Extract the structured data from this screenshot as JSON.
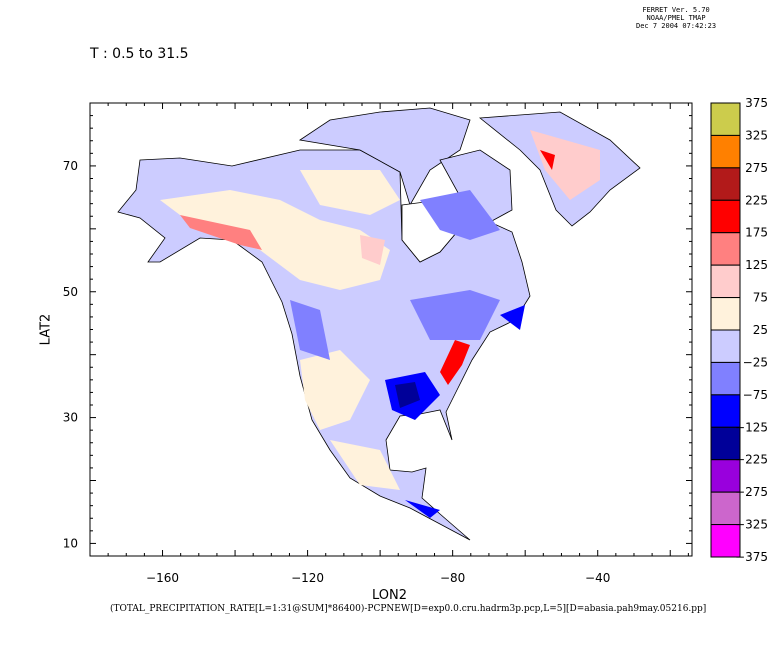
{
  "header": {
    "line1": "FERRET Ver. 5.70",
    "line2": "NOAA/PMEL TMAP",
    "line3": "Dec  7 2004 07:42:23"
  },
  "title": "T : 0.5 to 31.5",
  "footer": "(TOTAL_PRECIPITATION_RATE[L=1:31@SUM]*86400)-PCPNEW[D=exp0.0.cru.hadrm3p.pcp,L=5][D=abasia.pah9may.05216.pp]",
  "chart_data": {
    "type": "heatmap",
    "title": "T : 0.5 to 31.5",
    "xlabel": "LON2",
    "ylabel": "LAT2",
    "xlim": [
      -180,
      -14
    ],
    "ylim": [
      8,
      80
    ],
    "xticks": [
      -160,
      -120,
      -80,
      -40
    ],
    "xtick_labels": [
      "−160",
      "−120",
      "−80",
      "−40"
    ],
    "yticks": [
      70,
      50,
      30,
      10
    ],
    "ytick_labels": [
      "70",
      "50",
      "30",
      "10"
    ],
    "colorbar": {
      "labels": [
        "375",
        "325",
        "275",
        "225",
        "175",
        "125",
        "75",
        "25",
        "−25",
        "−75",
        "−125",
        "−225",
        "−275",
        "−325",
        "−375"
      ],
      "colors": [
        "#cccc4c",
        "#ff8000",
        "#b21a1a",
        "#ff0000",
        "#ff8080",
        "#ffcccc",
        "#fff2dc",
        "#ccccff",
        "#8080ff",
        "#0000ff",
        "#000099",
        "#9900dd",
        "#cc66cc",
        "#ff00ff"
      ]
    }
  }
}
